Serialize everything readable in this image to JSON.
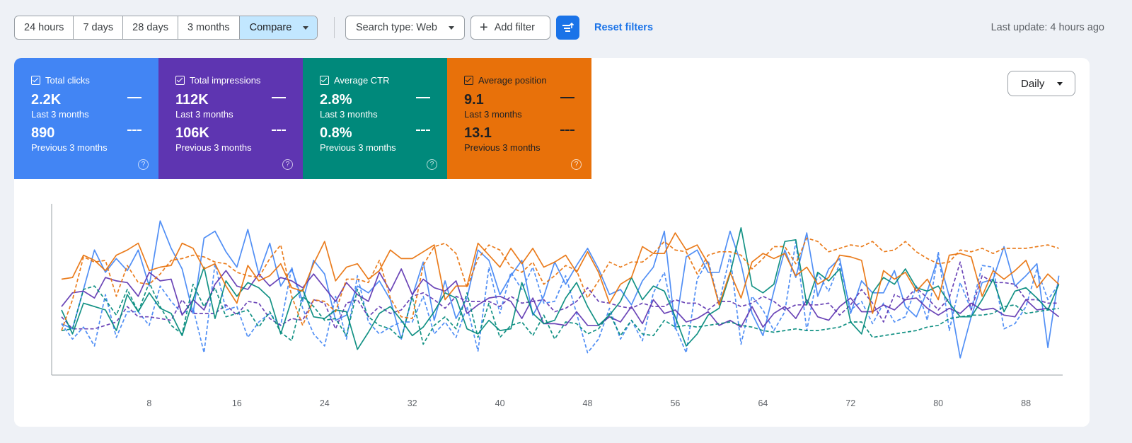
{
  "toolbar": {
    "ranges": [
      "24 hours",
      "7 days",
      "28 days",
      "3 months"
    ],
    "compare_label": "Compare",
    "search_type": "Search type: Web",
    "add_filter": "Add filter",
    "reset_filters": "Reset filters",
    "last_update": "Last update: 4 hours ago"
  },
  "metrics": [
    {
      "label": "Total clicks",
      "current": "2.2K",
      "current_period": "Last 3 months",
      "previous": "890",
      "previous_period": "Previous 3 months",
      "color": "#4285f4"
    },
    {
      "label": "Total impressions",
      "current": "112K",
      "current_period": "Last 3 months",
      "previous": "106K",
      "previous_period": "Previous 3 months",
      "color": "#5e35b1"
    },
    {
      "label": "Average CTR",
      "current": "2.8%",
      "current_period": "Last 3 months",
      "previous": "0.8%",
      "previous_period": "Previous 3 months",
      "color": "#00897b"
    },
    {
      "label": "Average position",
      "current": "9.1",
      "current_period": "Last 3 months",
      "previous": "13.1",
      "previous_period": "Previous 3 months",
      "color": "#e8710a"
    }
  ],
  "help_glyph": "?",
  "granularity": "Daily",
  "chart_data": {
    "type": "line",
    "x_ticks": [
      8,
      16,
      24,
      32,
      40,
      48,
      56,
      64,
      72,
      80,
      88
    ],
    "xlim": [
      0,
      92
    ],
    "ylim": [
      0,
      100
    ],
    "grid": false,
    "series": [
      {
        "color": "#4285f4",
        "style": "solid",
        "values": [
          30,
          27,
          50,
          73,
          60,
          68,
          61,
          73,
          52,
          90,
          74,
          62,
          36,
          80,
          84,
          72,
          63,
          85,
          59,
          77,
          52,
          62,
          43,
          67,
          59,
          32,
          35,
          52,
          48,
          55,
          44,
          21,
          46,
          66,
          32,
          55,
          33,
          45,
          73,
          67,
          47,
          58,
          67,
          35,
          46,
          66,
          53,
          64,
          74,
          62,
          47,
          50,
          41,
          55,
          63,
          84,
          27,
          69,
          73,
          60,
          60,
          84,
          65,
          36,
          23,
          49,
          73,
          57,
          83,
          46,
          62,
          68,
          36,
          55,
          48,
          48,
          61,
          40,
          34,
          49,
          69,
          46,
          10,
          34,
          54,
          56,
          75,
          52,
          58,
          65,
          16,
          58
        ]
      },
      {
        "color": "#4285f4",
        "style": "dashed",
        "values": [
          30,
          21,
          28,
          17,
          47,
          22,
          37,
          37,
          29,
          52,
          43,
          36,
          39,
          13,
          65,
          38,
          40,
          22,
          31,
          36,
          29,
          63,
          39,
          24,
          17,
          46,
          21,
          58,
          31,
          24,
          28,
          31,
          31,
          46,
          24,
          31,
          22,
          40,
          14,
          63,
          36,
          60,
          50,
          63,
          42,
          43,
          58,
          36,
          13,
          21,
          39,
          21,
          32,
          20,
          48,
          60,
          28,
          13,
          56,
          67,
          42,
          70,
          18,
          46,
          38,
          26,
          37,
          78,
          26,
          59,
          49,
          65,
          38,
          43,
          30,
          42,
          31,
          34,
          52,
          32,
          72,
          26,
          54,
          38,
          64,
          63,
          27,
          30,
          40,
          62,
          44,
          53
        ]
      },
      {
        "color": "#5e35b1",
        "style": "solid",
        "values": [
          40,
          48,
          49,
          45,
          57,
          55,
          54,
          46,
          60,
          55,
          56,
          35,
          44,
          38,
          53,
          61,
          52,
          50,
          59,
          52,
          57,
          55,
          51,
          59,
          51,
          43,
          54,
          47,
          43,
          60,
          49,
          62,
          47,
          56,
          51,
          49,
          55,
          36,
          41,
          45,
          46,
          43,
          33,
          45,
          30,
          30,
          29,
          37,
          29,
          29,
          34,
          31,
          40,
          30,
          44,
          36,
          38,
          31,
          33,
          37,
          29,
          32,
          28,
          40,
          28,
          36,
          40,
          33,
          44,
          34,
          32,
          40,
          45,
          37,
          37,
          41,
          38,
          44,
          45,
          39,
          35,
          39,
          36,
          42,
          38,
          39,
          35,
          34,
          44,
          38,
          39,
          34
        ]
      },
      {
        "color": "#5e35b1",
        "style": "dashed",
        "values": [
          34,
          27,
          27,
          27,
          29,
          31,
          40,
          34,
          34,
          33,
          32,
          44,
          36,
          36,
          36,
          41,
          35,
          43,
          42,
          33,
          29,
          33,
          32,
          44,
          42,
          27,
          42,
          44,
          34,
          40,
          36,
          38,
          46,
          48,
          44,
          39,
          46,
          43,
          43,
          43,
          40,
          46,
          42,
          43,
          44,
          37,
          39,
          43,
          51,
          43,
          42,
          40,
          39,
          42,
          40,
          40,
          44,
          42,
          42,
          38,
          43,
          43,
          40,
          42,
          46,
          43,
          38,
          41,
          41,
          41,
          42,
          35,
          41,
          50,
          42,
          31,
          47,
          44,
          51,
          45,
          38,
          45,
          66,
          38,
          58,
          54,
          54,
          53,
          44,
          44,
          42,
          42
        ]
      },
      {
        "color": "#00897b",
        "style": "solid",
        "values": [
          38,
          24,
          42,
          40,
          38,
          26,
          47,
          37,
          48,
          39,
          36,
          23,
          44,
          63,
          33,
          55,
          46,
          54,
          51,
          45,
          24,
          44,
          50,
          34,
          33,
          38,
          37,
          15,
          25,
          36,
          40,
          32,
          23,
          28,
          37,
          48,
          45,
          27,
          24,
          32,
          26,
          27,
          54,
          36,
          30,
          32,
          45,
          54,
          40,
          29,
          35,
          43,
          57,
          44,
          52,
          49,
          34,
          17,
          24,
          35,
          39,
          59,
          86,
          52,
          48,
          53,
          78,
          79,
          41,
          60,
          55,
          62,
          31,
          24,
          48,
          57,
          53,
          62,
          51,
          49,
          52,
          42,
          34,
          34,
          44,
          56,
          37,
          49,
          51,
          45,
          38,
          53
        ]
      },
      {
        "color": "#00897b",
        "style": "dashed",
        "values": [
          26,
          27,
          50,
          52,
          44,
          35,
          50,
          37,
          54,
          40,
          29,
          24,
          53,
          40,
          51,
          34,
          36,
          38,
          28,
          37,
          25,
          20,
          46,
          40,
          32,
          33,
          23,
          50,
          34,
          29,
          27,
          21,
          46,
          18,
          29,
          34,
          27,
          48,
          22,
          42,
          22,
          29,
          31,
          23,
          35,
          21,
          31,
          30,
          24,
          27,
          36,
          23,
          32,
          24,
          23,
          32,
          28,
          29,
          28,
          29,
          30,
          31,
          29,
          28,
          26,
          25,
          26,
          27,
          26,
          26,
          27,
          28,
          31,
          31,
          22,
          23,
          24,
          25,
          26,
          28,
          29,
          33,
          34,
          35,
          35,
          36,
          40,
          41,
          36,
          37,
          38,
          39
        ]
      },
      {
        "color": "#e8710a",
        "style": "solid",
        "values": [
          56,
          57,
          70,
          67,
          61,
          70,
          73,
          77,
          61,
          63,
          64,
          77,
          74,
          62,
          65,
          52,
          42,
          64,
          55,
          58,
          65,
          51,
          49,
          65,
          78,
          55,
          63,
          65,
          56,
          61,
          73,
          68,
          68,
          72,
          76,
          44,
          52,
          52,
          77,
          70,
          63,
          74,
          65,
          74,
          63,
          66,
          70,
          60,
          72,
          60,
          42,
          53,
          57,
          75,
          71,
          71,
          83,
          73,
          76,
          65,
          41,
          60,
          45,
          66,
          71,
          68,
          71,
          58,
          63,
          53,
          57,
          70,
          69,
          67,
          36,
          61,
          56,
          60,
          49,
          56,
          44,
          70,
          71,
          69,
          46,
          61,
          56,
          61,
          67,
          51,
          59,
          53
        ]
      },
      {
        "color": "#e8710a",
        "style": "dashed",
        "values": [
          26,
          44,
          69,
          66,
          67,
          46,
          64,
          54,
          53,
          59,
          67,
          68,
          70,
          69,
          66,
          65,
          60,
          58,
          57,
          68,
          76,
          46,
          29,
          44,
          43,
          37,
          56,
          56,
          54,
          67,
          45,
          34,
          33,
          64,
          75,
          77,
          71,
          51,
          68,
          76,
          73,
          63,
          60,
          66,
          53,
          58,
          64,
          61,
          45,
          55,
          66,
          63,
          66,
          66,
          71,
          78,
          73,
          72,
          59,
          70,
          72,
          72,
          70,
          62,
          68,
          75,
          75,
          65,
          80,
          78,
          72,
          74,
          76,
          75,
          78,
          72,
          73,
          78,
          72,
          68,
          65,
          66,
          73,
          72,
          74,
          71,
          74,
          74,
          74,
          75,
          76,
          74
        ]
      }
    ]
  }
}
